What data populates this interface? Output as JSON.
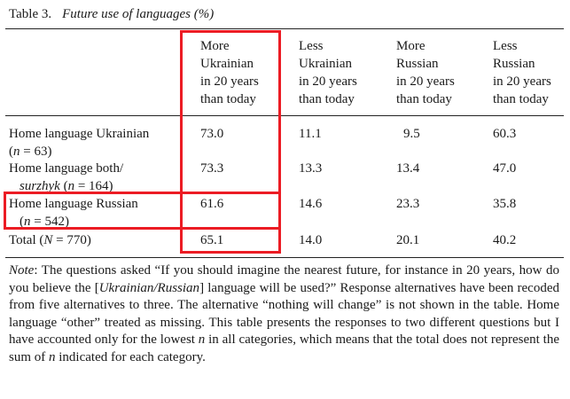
{
  "table": {
    "caption_label": "Table 3.",
    "caption_title": "Future use of languages (%)",
    "columns": [
      [
        "More",
        "Ukrainian",
        "in 20 years",
        "than today"
      ],
      [
        "Less",
        "Ukrainian",
        "in 20 years",
        "than today"
      ],
      [
        "More",
        "Russian",
        "in 20 years",
        "than today"
      ],
      [
        "Less",
        "Russian",
        "in 20 years",
        "than today"
      ]
    ],
    "rows": [
      {
        "label_l1": "Home language Ukrainian",
        "label_l2a": "(",
        "label_l2n": "n",
        "label_l2b": " = 63)",
        "values": [
          "73.0",
          "11.1",
          "9.5",
          "60.3"
        ]
      },
      {
        "label_l1": "Home language both/",
        "label_l2i": "surzhyk",
        "label_l2a": " (",
        "label_l2n": "n",
        "label_l2b": " = 164)",
        "values": [
          "73.3",
          "13.3",
          "13.4",
          "47.0"
        ]
      },
      {
        "label_l1": "Home language Russian",
        "label_l2a": "(",
        "label_l2n": "n",
        "label_l2b": " = 542)",
        "values": [
          "61.6",
          "14.6",
          "23.3",
          "35.8"
        ]
      },
      {
        "label_a": "Total (",
        "label_n": "N",
        "label_b": " = 770)",
        "values": [
          "65.1",
          "14.0",
          "20.1",
          "40.2"
        ]
      }
    ]
  },
  "note": {
    "lead": "Note",
    "p1": ": The questions asked “If you should imagine the nearest future, for instance in 20 years, how do you believe the [",
    "p1_italic": "Ukrainian/Russian",
    "p2": "] language will be used?” Response alternatives have been recoded from five alternatives to three. The alternative “nothing will change” is not shown in the table. Home language “other” treated as missing. This table presents the responses to two different questions but I have accounted only for the lowest ",
    "n1": "n",
    "p3": " in all categories, which means that the total does not represent the sum of ",
    "n2": "n",
    "p4": " indicated for each category."
  },
  "highlight_color": "#ec1c24"
}
